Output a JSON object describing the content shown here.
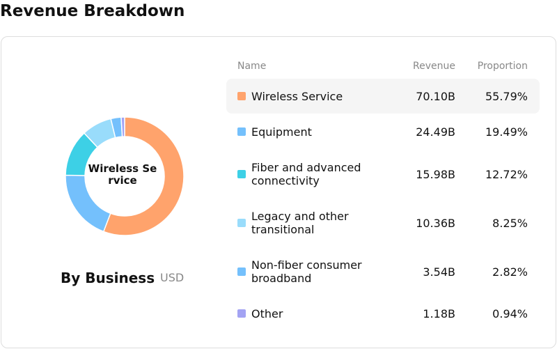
{
  "chart_data": {
    "type": "pie",
    "title": "Revenue Breakdown",
    "subtitle": "By Business",
    "unit": "USD",
    "center_label": "Wireless Service",
    "columns": [
      "Name",
      "Revenue",
      "Proportion"
    ],
    "categories": [
      "Wireless Service",
      "Equipment",
      "Fiber and advanced connectivity",
      "Legacy and other transitional",
      "Non-fiber consumer broadband",
      "Other"
    ],
    "values": [
      70100000000,
      24490000000,
      15980000000,
      10360000000,
      3540000000,
      1180000000
    ],
    "value_labels": [
      "70.10B",
      "24.49B",
      "15.98B",
      "10.36B",
      "3.54B",
      "1.18B"
    ],
    "proportions": [
      55.79,
      19.49,
      12.72,
      8.25,
      2.82,
      0.94
    ],
    "proportion_labels": [
      "55.79%",
      "19.49%",
      "12.72%",
      "8.25%",
      "2.82%",
      "0.94%"
    ],
    "colors": [
      "#ffa36c",
      "#74c0fc",
      "#3dd0e6",
      "#99dcfb",
      "#74c0fc",
      "#a3a3f3"
    ],
    "highlighted": 0
  }
}
